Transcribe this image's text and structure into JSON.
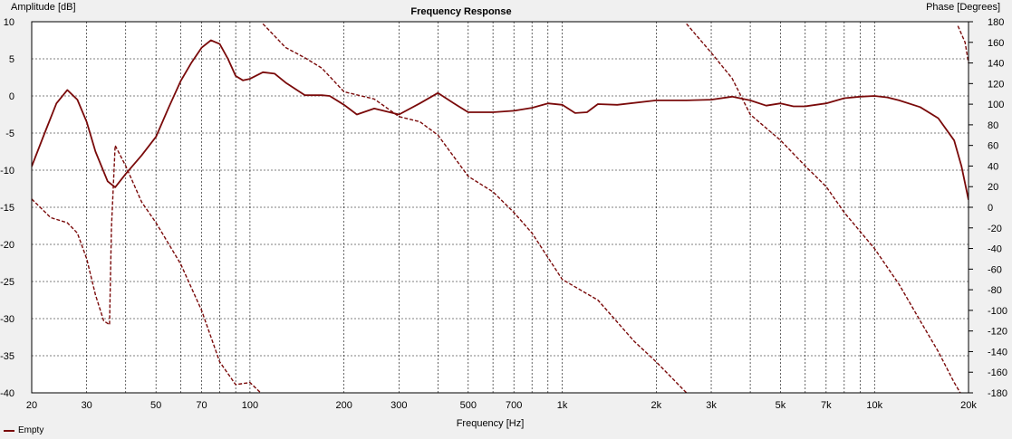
{
  "chart_data": {
    "type": "line",
    "title": "Frequency Response",
    "xlabel": "Frequency [Hz]",
    "ylabel": "Amplitude [dB]",
    "y2label": "Phase [Degrees]",
    "x_scale": "log",
    "xlim": [
      20,
      20000
    ],
    "ylim": [
      -40,
      10
    ],
    "y2lim": [
      -180,
      180
    ],
    "x_ticks": [
      {
        "v": 20,
        "label": "20"
      },
      {
        "v": 30,
        "label": "30"
      },
      {
        "v": 50,
        "label": "50"
      },
      {
        "v": 70,
        "label": "70"
      },
      {
        "v": 100,
        "label": "100"
      },
      {
        "v": 200,
        "label": "200"
      },
      {
        "v": 300,
        "label": "300"
      },
      {
        "v": 500,
        "label": "500"
      },
      {
        "v": 700,
        "label": "700"
      },
      {
        "v": 1000,
        "label": "1k"
      },
      {
        "v": 2000,
        "label": "2k"
      },
      {
        "v": 3000,
        "label": "3k"
      },
      {
        "v": 5000,
        "label": "5k"
      },
      {
        "v": 7000,
        "label": "7k"
      },
      {
        "v": 10000,
        "label": "10k"
      },
      {
        "v": 20000,
        "label": "20k"
      }
    ],
    "y_ticks": [
      10,
      5,
      0,
      -5,
      -10,
      -15,
      -20,
      -25,
      -30,
      -35,
      -40
    ],
    "y2_ticks": [
      180,
      160,
      140,
      120,
      100,
      80,
      60,
      40,
      20,
      0,
      -20,
      -40,
      -60,
      -80,
      -100,
      -120,
      -140,
      -160,
      -180
    ],
    "grid": true,
    "legend_position": "bottom-left",
    "colors": {
      "series": "#7a0a0a",
      "grid": "#000000",
      "background": "#ffffff"
    },
    "series": [
      {
        "name": "Empty",
        "axis": "left",
        "style": "solid",
        "points": [
          [
            20,
            -9.5
          ],
          [
            22,
            -5
          ],
          [
            24,
            -1
          ],
          [
            26,
            0.8
          ],
          [
            28,
            -0.5
          ],
          [
            30,
            -3.5
          ],
          [
            32,
            -7.5
          ],
          [
            35,
            -11.5
          ],
          [
            37,
            -12.3
          ],
          [
            40,
            -10.5
          ],
          [
            45,
            -8
          ],
          [
            50,
            -5.5
          ],
          [
            55,
            -1.5
          ],
          [
            60,
            2
          ],
          [
            65,
            4.5
          ],
          [
            70,
            6.5
          ],
          [
            75,
            7.5
          ],
          [
            80,
            7
          ],
          [
            85,
            5
          ],
          [
            90,
            2.7
          ],
          [
            95,
            2.1
          ],
          [
            100,
            2.3
          ],
          [
            110,
            3.2
          ],
          [
            120,
            3
          ],
          [
            130,
            1.8
          ],
          [
            150,
            0.1
          ],
          [
            170,
            0.1
          ],
          [
            180,
            0
          ],
          [
            200,
            -1.2
          ],
          [
            220,
            -2.5
          ],
          [
            250,
            -1.7
          ],
          [
            300,
            -2.5
          ],
          [
            350,
            -1
          ],
          [
            400,
            0.4
          ],
          [
            450,
            -1
          ],
          [
            500,
            -2.2
          ],
          [
            600,
            -2.2
          ],
          [
            700,
            -2.0
          ],
          [
            800,
            -1.6
          ],
          [
            900,
            -1.0
          ],
          [
            1000,
            -1.2
          ],
          [
            1100,
            -2.3
          ],
          [
            1200,
            -2.2
          ],
          [
            1300,
            -1.1
          ],
          [
            1500,
            -1.2
          ],
          [
            2000,
            -0.6
          ],
          [
            2500,
            -0.6
          ],
          [
            3000,
            -0.5
          ],
          [
            3500,
            -0.1
          ],
          [
            4000,
            -0.6
          ],
          [
            4500,
            -1.3
          ],
          [
            5000,
            -1.0
          ],
          [
            5500,
            -1.4
          ],
          [
            6000,
            -1.4
          ],
          [
            7000,
            -1.0
          ],
          [
            8000,
            -0.3
          ],
          [
            9000,
            -0.1
          ],
          [
            10000,
            0
          ],
          [
            11000,
            -0.2
          ],
          [
            12000,
            -0.6
          ],
          [
            14000,
            -1.5
          ],
          [
            16000,
            -3
          ],
          [
            18000,
            -6
          ],
          [
            19000,
            -9.5
          ],
          [
            20000,
            -14
          ]
        ]
      },
      {
        "name": "",
        "axis": "right",
        "style": "dashed",
        "points": [
          [
            20,
            8
          ],
          [
            23,
            -10
          ],
          [
            26,
            -15
          ],
          [
            28,
            -25
          ],
          [
            30,
            -50
          ],
          [
            32,
            -85
          ],
          [
            34,
            -110
          ],
          [
            35.5,
            -114
          ],
          [
            36,
            -20
          ],
          [
            37,
            60
          ],
          [
            40,
            40
          ],
          [
            45,
            5
          ],
          [
            50,
            -15
          ],
          [
            60,
            -55
          ],
          [
            70,
            -100
          ],
          [
            80,
            -150
          ],
          [
            90,
            -172
          ],
          [
            100,
            -170
          ],
          [
            110,
            -182
          ]
        ]
      },
      {
        "name": "",
        "axis": "right",
        "style": "dashed",
        "points": [
          [
            110,
            178
          ],
          [
            130,
            155
          ],
          [
            150,
            145
          ],
          [
            170,
            135
          ],
          [
            200,
            112
          ],
          [
            250,
            105
          ],
          [
            300,
            88
          ],
          [
            350,
            83
          ],
          [
            400,
            70
          ],
          [
            500,
            30
          ],
          [
            600,
            15
          ],
          [
            700,
            -5
          ],
          [
            800,
            -25
          ],
          [
            1000,
            -70
          ],
          [
            1300,
            -90
          ],
          [
            1700,
            -130
          ],
          [
            2000,
            -150
          ],
          [
            2500,
            -180
          ]
        ]
      },
      {
        "name": "",
        "axis": "right",
        "style": "dashed",
        "points": [
          [
            2500,
            178
          ],
          [
            3000,
            150
          ],
          [
            3500,
            125
          ],
          [
            4000,
            90
          ],
          [
            5000,
            65
          ],
          [
            6000,
            40
          ],
          [
            7000,
            20
          ],
          [
            8000,
            -5
          ],
          [
            10000,
            -40
          ],
          [
            12000,
            -75
          ],
          [
            14000,
            -110
          ],
          [
            16000,
            -140
          ],
          [
            18000,
            -170
          ],
          [
            19000,
            -182
          ]
        ]
      },
      {
        "name": "",
        "axis": "right",
        "style": "dashed",
        "points": [
          [
            18500,
            176
          ],
          [
            19500,
            160
          ],
          [
            20000,
            140
          ]
        ]
      }
    ]
  }
}
